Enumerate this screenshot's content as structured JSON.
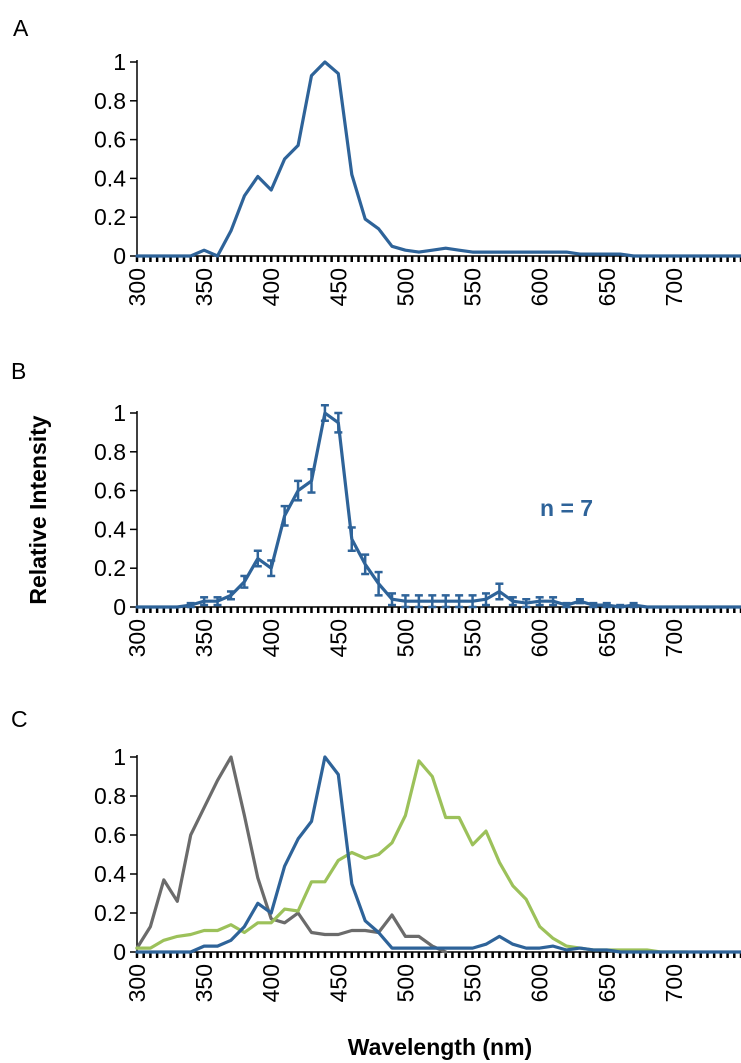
{
  "chart_data": [
    {
      "type": "line",
      "panel_label": "A",
      "ylabel": "",
      "xlabel": "",
      "ylim": [
        0,
        1
      ],
      "xlim": [
        300,
        750
      ],
      "x_ticks": [
        300,
        350,
        400,
        450,
        500,
        550,
        600,
        650,
        700
      ],
      "y_ticks": [
        0,
        0.2,
        0.4,
        0.6,
        0.8,
        1
      ],
      "y_tick_labels": [
        "0",
        "0.2",
        "0.4",
        "0.6",
        "0.8",
        "1"
      ],
      "x_tick_labels": [
        "300",
        "350",
        "400",
        "450",
        "500",
        "550",
        "600",
        "650",
        "700"
      ],
      "series": [
        {
          "color": "#2e6399",
          "x": [
            300,
            310,
            320,
            330,
            340,
            350,
            360,
            370,
            380,
            390,
            400,
            410,
            420,
            430,
            440,
            450,
            460,
            470,
            480,
            490,
            500,
            510,
            520,
            530,
            540,
            550,
            560,
            570,
            580,
            590,
            600,
            610,
            620,
            630,
            640,
            650,
            660,
            670,
            680,
            690,
            700,
            710,
            720,
            730,
            740,
            750
          ],
          "values": [
            0,
            0,
            0,
            0,
            0,
            0.03,
            0,
            0.13,
            0.31,
            0.41,
            0.34,
            0.5,
            0.57,
            0.93,
            1.0,
            0.94,
            0.42,
            0.19,
            0.14,
            0.05,
            0.03,
            0.02,
            0.03,
            0.04,
            0.03,
            0.02,
            0.02,
            0.02,
            0.02,
            0.02,
            0.02,
            0.02,
            0.02,
            0.01,
            0.01,
            0.01,
            0.01,
            0,
            0,
            0,
            0,
            0,
            0,
            0,
            0,
            0
          ]
        }
      ]
    },
    {
      "type": "line",
      "panel_label": "B",
      "ylabel": "Relative Intensity",
      "xlabel": "",
      "annotation": "n = 7",
      "ylim": [
        0,
        1
      ],
      "xlim": [
        300,
        750
      ],
      "x_ticks": [
        300,
        350,
        400,
        450,
        500,
        550,
        600,
        650,
        700
      ],
      "y_ticks": [
        0,
        0.2,
        0.4,
        0.6,
        0.8,
        1
      ],
      "y_tick_labels": [
        "0",
        "0.2",
        "0.4",
        "0.6",
        "0.8",
        "1"
      ],
      "x_tick_labels": [
        "300",
        "350",
        "400",
        "450",
        "500",
        "550",
        "600",
        "650",
        "700"
      ],
      "series": [
        {
          "color": "#2e6399",
          "x": [
            300,
            310,
            320,
            330,
            340,
            350,
            360,
            370,
            380,
            390,
            400,
            410,
            420,
            430,
            440,
            450,
            460,
            470,
            480,
            490,
            500,
            510,
            520,
            530,
            540,
            550,
            560,
            570,
            580,
            590,
            600,
            610,
            620,
            630,
            640,
            650,
            660,
            670,
            680,
            690,
            700,
            710,
            720,
            730,
            740,
            750
          ],
          "values": [
            0,
            0,
            0,
            0,
            0.01,
            0.03,
            0.03,
            0.06,
            0.13,
            0.25,
            0.2,
            0.47,
            0.6,
            0.65,
            1.0,
            0.95,
            0.35,
            0.22,
            0.12,
            0.04,
            0.03,
            0.03,
            0.03,
            0.03,
            0.03,
            0.03,
            0.04,
            0.08,
            0.03,
            0.02,
            0.03,
            0.03,
            0.01,
            0.03,
            0.01,
            0.01,
            0,
            0.01,
            0,
            0,
            0,
            0,
            0,
            0,
            0,
            0
          ],
          "errors": [
            0,
            0,
            0,
            0,
            0.01,
            0.02,
            0.02,
            0.02,
            0.03,
            0.04,
            0.04,
            0.05,
            0.05,
            0.06,
            0.04,
            0.05,
            0.06,
            0.05,
            0.06,
            0.03,
            0.03,
            0.03,
            0.03,
            0.03,
            0.03,
            0.03,
            0.03,
            0.04,
            0.02,
            0.02,
            0.02,
            0.02,
            0.01,
            0.01,
            0.01,
            0.01,
            0.01,
            0.01,
            0,
            0,
            0,
            0,
            0,
            0,
            0,
            0
          ]
        }
      ]
    },
    {
      "type": "line",
      "panel_label": "C",
      "ylabel": "",
      "xlabel": "Wavelength (nm)",
      "ylim": [
        0,
        1
      ],
      "xlim": [
        300,
        750
      ],
      "x_ticks": [
        300,
        350,
        400,
        450,
        500,
        550,
        600,
        650,
        700
      ],
      "y_ticks": [
        0,
        0.2,
        0.4,
        0.6,
        0.8,
        1
      ],
      "y_tick_labels": [
        "0",
        "0.2",
        "0.4",
        "0.6",
        "0.8",
        "1"
      ],
      "x_tick_labels": [
        "300",
        "350",
        "400",
        "450",
        "500",
        "550",
        "600",
        "650",
        "700"
      ],
      "series": [
        {
          "color": "#6b6b6b",
          "x": [
            300,
            310,
            320,
            330,
            340,
            350,
            360,
            370,
            380,
            390,
            400,
            410,
            420,
            430,
            440,
            450,
            460,
            470,
            480,
            490,
            500,
            510,
            520,
            530
          ],
          "values": [
            0.02,
            0.13,
            0.37,
            0.26,
            0.6,
            0.74,
            0.88,
            1.0,
            0.7,
            0.38,
            0.17,
            0.15,
            0.2,
            0.1,
            0.09,
            0.09,
            0.11,
            0.11,
            0.1,
            0.19,
            0.08,
            0.08,
            0.03,
            0
          ]
        },
        {
          "color": "#9cc15a",
          "x": [
            300,
            310,
            320,
            330,
            340,
            350,
            360,
            370,
            380,
            390,
            400,
            410,
            420,
            430,
            440,
            450,
            460,
            470,
            480,
            490,
            500,
            510,
            520,
            530,
            540,
            550,
            560,
            570,
            580,
            590,
            600,
            610,
            620,
            630,
            640,
            650,
            660,
            670,
            680,
            690,
            700,
            710
          ],
          "values": [
            0.02,
            0.02,
            0.06,
            0.08,
            0.09,
            0.11,
            0.11,
            0.14,
            0.1,
            0.15,
            0.15,
            0.22,
            0.21,
            0.36,
            0.36,
            0.47,
            0.51,
            0.48,
            0.5,
            0.56,
            0.7,
            0.98,
            0.9,
            0.69,
            0.69,
            0.55,
            0.62,
            0.46,
            0.34,
            0.27,
            0.13,
            0.07,
            0.03,
            0.02,
            0.01,
            0.01,
            0.01,
            0.01,
            0.01,
            0,
            0,
            0
          ]
        },
        {
          "color": "#2e6399",
          "x": [
            300,
            310,
            320,
            330,
            340,
            350,
            360,
            370,
            380,
            390,
            400,
            410,
            420,
            430,
            440,
            450,
            460,
            470,
            480,
            490,
            500,
            510,
            520,
            530,
            540,
            550,
            560,
            570,
            580,
            590,
            600,
            610,
            620,
            630,
            640,
            650,
            660,
            670,
            680,
            690,
            700,
            710,
            720,
            730,
            740,
            750
          ],
          "values": [
            0,
            0,
            0,
            0,
            0,
            0.03,
            0.03,
            0.06,
            0.13,
            0.25,
            0.2,
            0.44,
            0.58,
            0.67,
            1.0,
            0.91,
            0.35,
            0.16,
            0.1,
            0.02,
            0.02,
            0.02,
            0.02,
            0.02,
            0.02,
            0.02,
            0.04,
            0.08,
            0.04,
            0.02,
            0.02,
            0.03,
            0.01,
            0.02,
            0.01,
            0.01,
            0,
            0,
            0,
            0,
            0,
            0,
            0,
            0,
            0,
            0
          ]
        }
      ]
    }
  ]
}
